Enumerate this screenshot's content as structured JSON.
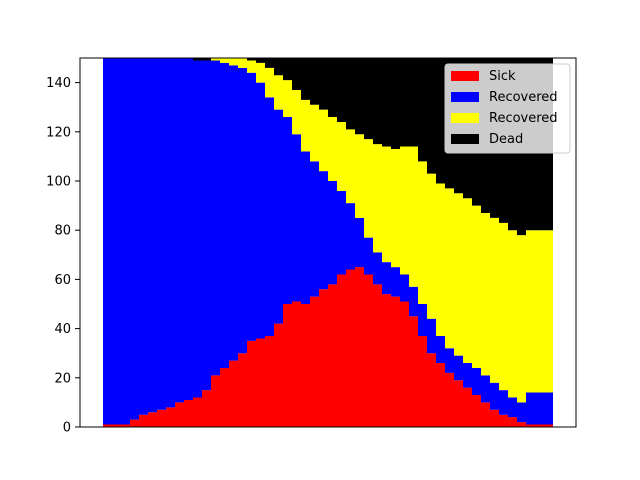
{
  "chart_data": {
    "type": "area",
    "title": "",
    "xlabel": "",
    "ylabel": "",
    "xlim": [
      0,
      100
    ],
    "ylim": [
      0,
      150
    ],
    "yticks": [
      0,
      20,
      40,
      60,
      80,
      100,
      120,
      140
    ],
    "xticks": [],
    "grid": false,
    "legend_position": "top-right",
    "x": [
      0,
      2,
      4,
      6,
      8,
      10,
      12,
      14,
      16,
      18,
      20,
      22,
      24,
      26,
      28,
      30,
      32,
      34,
      36,
      38,
      40,
      42,
      44,
      46,
      48,
      50,
      52,
      54,
      56,
      58,
      60,
      62,
      64,
      66,
      68,
      70,
      72,
      74,
      76,
      78,
      80,
      82,
      84,
      86,
      88,
      90,
      92,
      94,
      96,
      98,
      100
    ],
    "series": [
      {
        "name": "Sick",
        "color": "#ff0000",
        "values": [
          1,
          1,
          1,
          3,
          5,
          6,
          7,
          8,
          10,
          11,
          12,
          15,
          21,
          24,
          27,
          30,
          35,
          36,
          37,
          42,
          50,
          51,
          50,
          53,
          56,
          58,
          62,
          64,
          65,
          62,
          58,
          54,
          53,
          51,
          45,
          37,
          30,
          26,
          22,
          19,
          16,
          13,
          10,
          7,
          5,
          4,
          2,
          1,
          1,
          1,
          1
        ]
      },
      {
        "name": "Recovered",
        "color": "#0000ff",
        "values": [
          149,
          149,
          149,
          147,
          145,
          144,
          143,
          142,
          140,
          139,
          137,
          134,
          128,
          124,
          120,
          116,
          109,
          104,
          97,
          87,
          76,
          68,
          62,
          55,
          48,
          42,
          34,
          27,
          20,
          15,
          13,
          13,
          12,
          11,
          12,
          13,
          14,
          11,
          10,
          10,
          10,
          11,
          11,
          11,
          10,
          8,
          8,
          13,
          13,
          13,
          13
        ]
      },
      {
        "name": "Recovered",
        "color": "#ffff00",
        "values": [
          0,
          0,
          0,
          0,
          0,
          0,
          0,
          0,
          0,
          0,
          0,
          0,
          1,
          2,
          3,
          4,
          5,
          8,
          12,
          14,
          15,
          18,
          21,
          23,
          25,
          26,
          28,
          30,
          34,
          40,
          44,
          47,
          48,
          52,
          57,
          58,
          59,
          62,
          65,
          66,
          67,
          66,
          66,
          67,
          68,
          68,
          68,
          66,
          66,
          66,
          66
        ]
      },
      {
        "name": "Dead",
        "color": "#000000",
        "values": [
          0,
          0,
          0,
          0,
          0,
          0,
          0,
          0,
          0,
          0,
          1,
          1,
          0,
          0,
          0,
          0,
          1,
          2,
          4,
          7,
          9,
          13,
          17,
          19,
          21,
          24,
          26,
          29,
          31,
          33,
          35,
          36,
          37,
          36,
          36,
          42,
          47,
          51,
          53,
          55,
          57,
          60,
          63,
          65,
          67,
          70,
          72,
          70,
          70,
          70,
          70
        ]
      }
    ]
  }
}
